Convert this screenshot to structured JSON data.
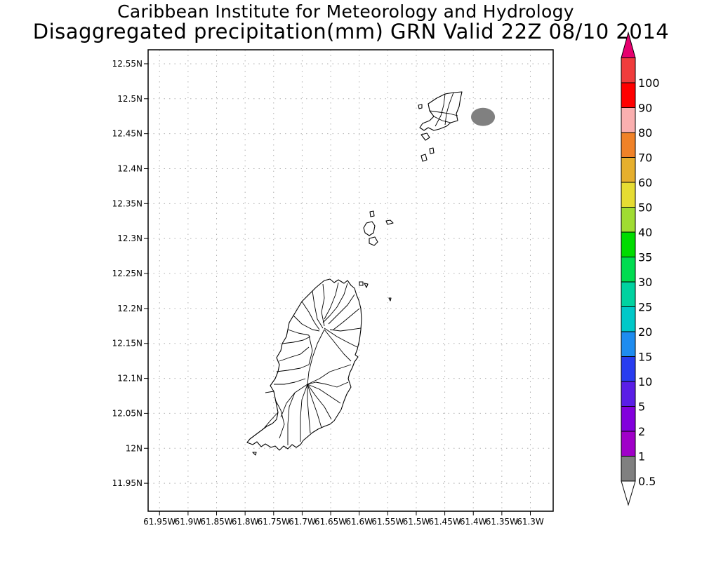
{
  "title": {
    "line1": "Caribbean Institute for Meteorology and Hydrology",
    "line2": "Disaggregated precipitation(mm) GRN Valid 22Z 08/10 2014"
  },
  "map": {
    "lon_range": [
      -61.97,
      -61.26
    ],
    "lat_range": [
      11.91,
      12.57
    ],
    "lat_ticks": [
      {
        "value": 12.55,
        "label": "12.55N"
      },
      {
        "value": 12.5,
        "label": "12.5N"
      },
      {
        "value": 12.45,
        "label": "12.45N"
      },
      {
        "value": 12.4,
        "label": "12.4N"
      },
      {
        "value": 12.35,
        "label": "12.35N"
      },
      {
        "value": 12.3,
        "label": "12.3N"
      },
      {
        "value": 12.25,
        "label": "12.25N"
      },
      {
        "value": 12.2,
        "label": "12.2N"
      },
      {
        "value": 12.15,
        "label": "12.15N"
      },
      {
        "value": 12.1,
        "label": "12.1N"
      },
      {
        "value": 12.05,
        "label": "12.05N"
      },
      {
        "value": 12.0,
        "label": "12N"
      },
      {
        "value": 11.95,
        "label": "11.95N"
      }
    ],
    "lon_ticks": [
      {
        "value": -61.95,
        "label": "61.95W"
      },
      {
        "value": -61.9,
        "label": "61.9W"
      },
      {
        "value": -61.85,
        "label": "61.85W"
      },
      {
        "value": -61.8,
        "label": "61.8W"
      },
      {
        "value": -61.75,
        "label": "61.75W"
      },
      {
        "value": -61.7,
        "label": "61.7W"
      },
      {
        "value": -61.65,
        "label": "61.65W"
      },
      {
        "value": -61.6,
        "label": "61.6W"
      },
      {
        "value": -61.55,
        "label": "61.55W"
      },
      {
        "value": -61.5,
        "label": "61.5W"
      },
      {
        "value": -61.45,
        "label": "61.45W"
      },
      {
        "value": -61.4,
        "label": "61.4W"
      },
      {
        "value": -61.35,
        "label": "61.35W"
      },
      {
        "value": -61.3,
        "label": "61.3W"
      }
    ],
    "grid": "dotted",
    "precip_areas": [
      {
        "lon": -61.383,
        "lat": 12.474,
        "rlon": 0.021,
        "rlat": 0.013,
        "value_range": "0.5-1",
        "color": "#808080"
      }
    ]
  },
  "colorbar": {
    "levels": [
      "0.5",
      "1",
      "2",
      "5",
      "10",
      "15",
      "20",
      "25",
      "30",
      "35",
      "40",
      "50",
      "60",
      "70",
      "80",
      "90",
      "100"
    ],
    "colors": [
      "#808080",
      "#a000c8",
      "#8200dc",
      "#5a1ee6",
      "#283cf0",
      "#1e8cf0",
      "#00c8c8",
      "#00d2a0",
      "#00dc50",
      "#00dc00",
      "#a0dc32",
      "#e6dc32",
      "#e6af2d",
      "#f08228",
      "#faafaf",
      "#ff0000",
      "#f03c3c"
    ],
    "over_color": "#e6006e",
    "under_color": "#ffffff"
  }
}
